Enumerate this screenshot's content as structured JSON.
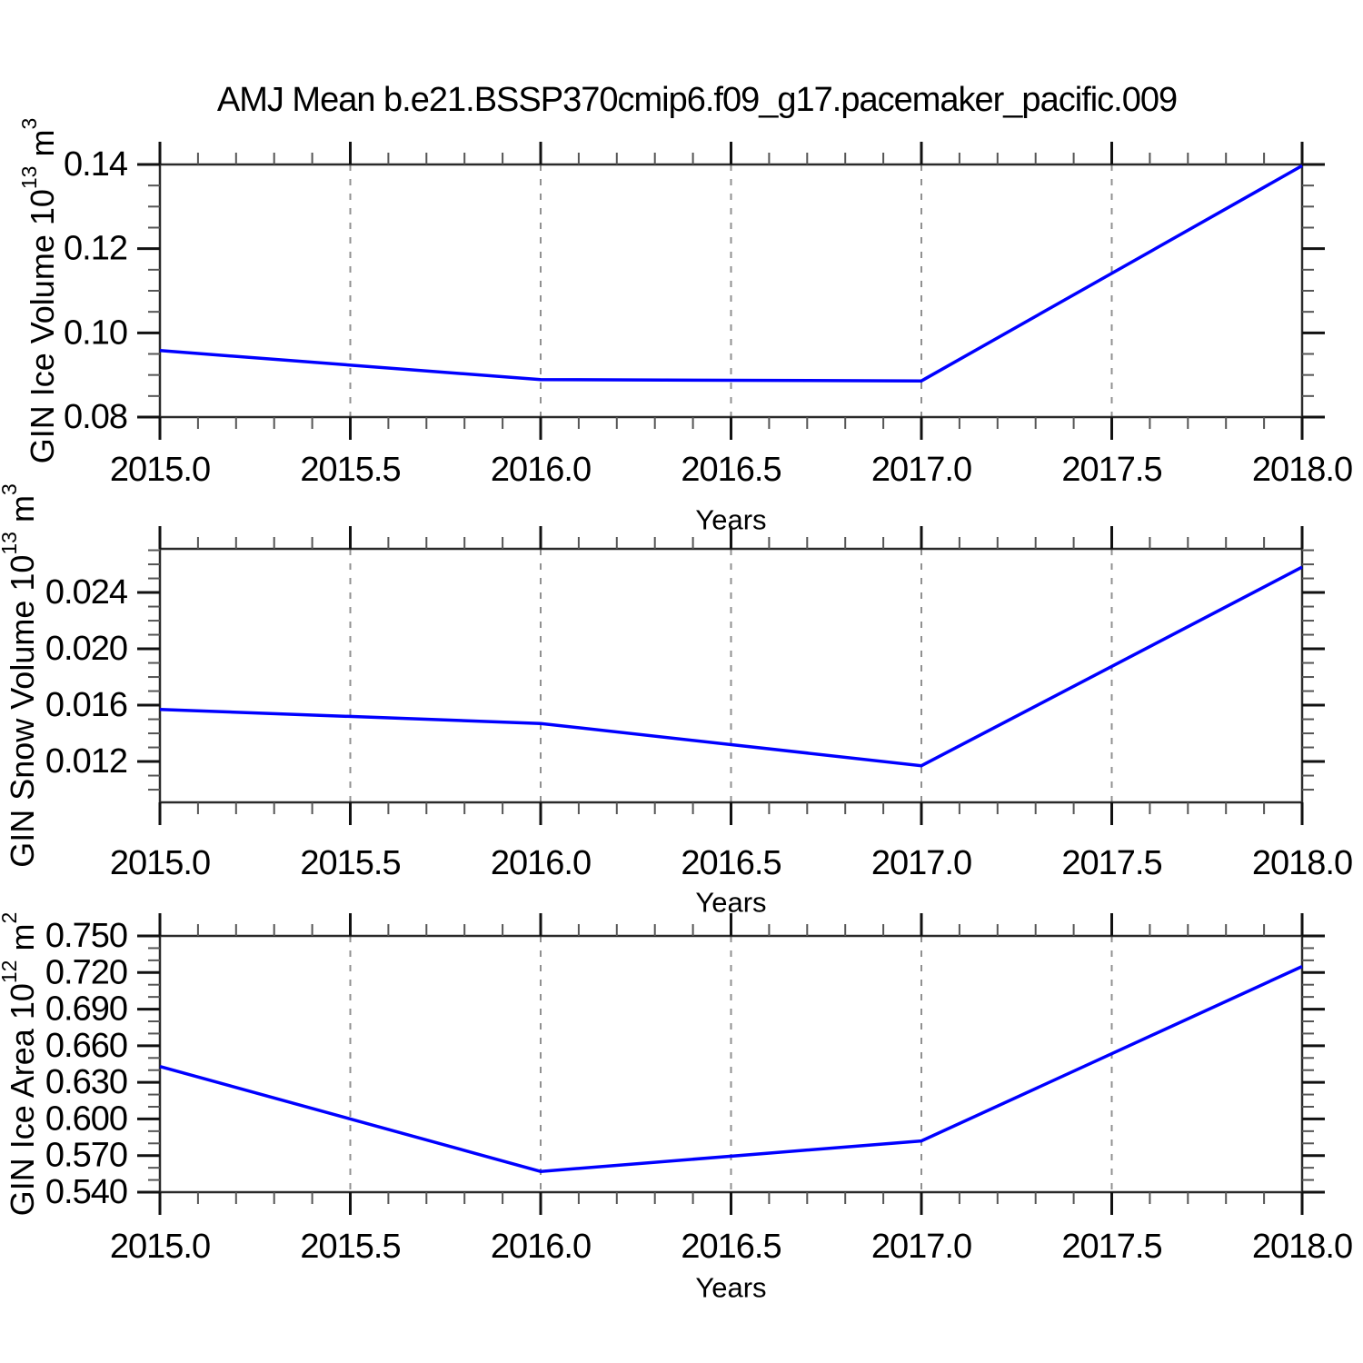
{
  "title": "AMJ Mean b.e21.BSSP370cmip6.f09_g17.pacemaker_pacific.009",
  "colors": {
    "line": "#0000ff",
    "grid": "#909090",
    "frame": "#2a2a2a",
    "tick_major": "#111111",
    "tick_minor": "#555555",
    "text": "#000000"
  },
  "xaxis": {
    "label": "Years",
    "min": 2015.0,
    "max": 2018.0,
    "ticks": [
      2015.0,
      2015.5,
      2016.0,
      2016.5,
      2017.0,
      2017.5,
      2018.0
    ],
    "tick_labels": [
      "2015.0",
      "2015.5",
      "2016.0",
      "2016.5",
      "2017.0",
      "2017.5",
      "2018.0"
    ],
    "minor_step": 0.1,
    "gridlines": [
      2015.5,
      2016.0,
      2016.5,
      2017.0,
      2017.5
    ]
  },
  "chart_data": [
    {
      "type": "line",
      "name": "gin-ice-volume",
      "ylabel_text": "GIN Ice Volume 10^13 m^3",
      "ylabel_segments": [
        {
          "t": "GIN Ice Volume 10"
        },
        {
          "t": "13",
          "sup": true
        },
        {
          "t": " m"
        },
        {
          "t": "3",
          "sup": true
        }
      ],
      "xlabel": "Years",
      "x": [
        2015.0,
        2016.0,
        2017.0,
        2018.0
      ],
      "y": [
        0.0958,
        0.0889,
        0.0886,
        0.1397
      ],
      "ylim": [
        0.08,
        0.14
      ],
      "yticks": [
        0.08,
        0.1,
        0.12,
        0.14
      ],
      "ytick_labels": [
        "0.08",
        "0.10",
        "0.12",
        "0.14"
      ],
      "yminor_step": 0.005
    },
    {
      "type": "line",
      "name": "gin-snow-volume",
      "ylabel_text": "GIN Snow Volume 10^13 m^3",
      "ylabel_segments": [
        {
          "t": "GIN Snow Volume 10"
        },
        {
          "t": "13",
          "sup": true
        },
        {
          "t": " m"
        },
        {
          "t": "3",
          "sup": true
        }
      ],
      "xlabel": "Years",
      "x": [
        2015.0,
        2016.0,
        2017.0,
        2018.0
      ],
      "y": [
        0.0157,
        0.0147,
        0.0117,
        0.0258
      ],
      "ylim": [
        0.0091,
        0.0271
      ],
      "yticks": [
        0.012,
        0.016,
        0.02,
        0.024
      ],
      "ytick_labels": [
        "0.012",
        "0.016",
        "0.020",
        "0.024"
      ],
      "yminor_step": 0.001
    },
    {
      "type": "line",
      "name": "gin-ice-area",
      "ylabel_text": "GIN Ice Area 10^12 m^2",
      "ylabel_segments": [
        {
          "t": "GIN Ice Area 10"
        },
        {
          "t": "12",
          "sup": true
        },
        {
          "t": " m"
        },
        {
          "t": "2",
          "sup": true
        }
      ],
      "xlabel": "Years",
      "x": [
        2015.0,
        2016.0,
        2017.0,
        2018.0
      ],
      "y": [
        0.643,
        0.557,
        0.582,
        0.725
      ],
      "ylim": [
        0.54,
        0.75
      ],
      "yticks": [
        0.54,
        0.57,
        0.6,
        0.63,
        0.66,
        0.69,
        0.72,
        0.75
      ],
      "ytick_labels": [
        "0.540",
        "0.570",
        "0.600",
        "0.630",
        "0.660",
        "0.690",
        "0.720",
        "0.750"
      ],
      "yminor_step": 0.01
    }
  ]
}
